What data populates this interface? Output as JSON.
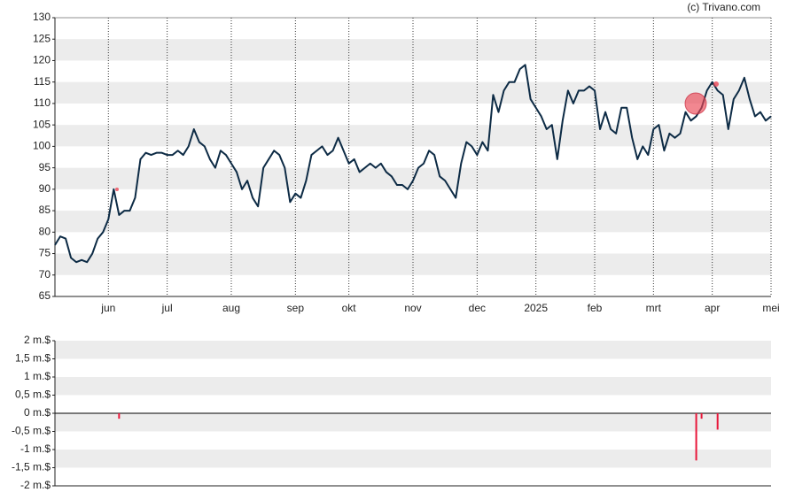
{
  "copyright": "(c) Trivano.com",
  "chart_data": [
    {
      "type": "line",
      "color": "#0d2b45",
      "grid": true,
      "bands": true,
      "categories": [
        null,
        null,
        null,
        null,
        null,
        null,
        null,
        null,
        null,
        null,
        "jun",
        null,
        null,
        null,
        null,
        null,
        null,
        null,
        null,
        null,
        null,
        "jul",
        null,
        null,
        null,
        null,
        null,
        null,
        null,
        null,
        null,
        null,
        null,
        "aug",
        null,
        null,
        null,
        null,
        null,
        null,
        null,
        null,
        null,
        null,
        null,
        "sep",
        null,
        null,
        null,
        null,
        null,
        null,
        null,
        null,
        null,
        "okt",
        null,
        null,
        null,
        null,
        null,
        null,
        null,
        null,
        null,
        null,
        null,
        "nov",
        null,
        null,
        null,
        null,
        null,
        null,
        null,
        null,
        null,
        null,
        null,
        "dec",
        null,
        null,
        null,
        null,
        null,
        null,
        null,
        null,
        null,
        null,
        "2025",
        null,
        null,
        null,
        null,
        null,
        null,
        null,
        null,
        null,
        null,
        "feb",
        null,
        null,
        null,
        null,
        null,
        null,
        null,
        null,
        null,
        null,
        "mrt",
        null,
        null,
        null,
        null,
        null,
        null,
        null,
        null,
        null,
        null,
        "apr",
        null,
        null,
        null,
        null,
        null,
        null,
        null,
        null,
        null,
        null,
        "mei"
      ],
      "values": [
        77,
        79,
        78.5,
        74,
        73,
        73.5,
        73,
        75,
        78.5,
        80,
        83,
        90,
        84,
        85,
        85,
        88,
        97,
        98.5,
        98,
        98.5,
        98.5,
        98,
        98,
        99,
        98,
        100,
        104,
        101,
        100,
        97,
        95,
        99,
        98,
        96,
        94,
        90,
        92,
        88,
        86,
        95,
        97,
        99,
        98,
        95,
        87,
        89,
        88,
        92,
        98,
        99,
        100,
        98,
        99,
        102,
        99,
        96,
        97,
        94,
        95,
        96,
        95,
        96,
        94,
        93,
        91,
        91,
        90,
        92,
        95,
        96,
        99,
        98,
        93,
        92,
        90,
        88,
        96,
        101,
        100,
        98,
        101,
        99,
        112,
        108,
        113,
        115,
        115,
        118,
        119,
        111,
        109,
        107,
        104,
        105,
        97,
        106,
        113,
        110,
        113,
        113,
        114,
        113,
        104,
        108,
        104,
        103,
        109,
        109,
        102,
        97,
        100,
        98,
        104,
        105,
        99,
        103,
        102,
        103,
        108,
        106,
        107,
        109,
        113,
        115,
        113,
        112,
        104,
        111,
        113,
        116,
        111,
        107,
        108,
        106,
        107
      ],
      "ylim": [
        65,
        130
      ],
      "yticks": [
        65,
        70,
        75,
        80,
        85,
        90,
        95,
        100,
        105,
        110,
        115,
        120,
        125,
        130
      ]
    },
    {
      "type": "bar",
      "color": "#e8173a",
      "grid": true,
      "bands": true,
      "values": [
        null,
        null,
        null,
        null,
        null,
        null,
        null,
        null,
        null,
        null,
        null,
        null,
        -0.15,
        null,
        null,
        null,
        null,
        null,
        null,
        null,
        null,
        null,
        null,
        null,
        null,
        null,
        null,
        null,
        null,
        null,
        null,
        null,
        null,
        null,
        null,
        null,
        null,
        null,
        null,
        null,
        null,
        null,
        null,
        null,
        null,
        null,
        null,
        null,
        null,
        null,
        null,
        null,
        null,
        null,
        null,
        null,
        null,
        null,
        null,
        null,
        null,
        null,
        null,
        null,
        null,
        null,
        null,
        null,
        null,
        null,
        null,
        null,
        null,
        null,
        null,
        null,
        null,
        null,
        null,
        null,
        null,
        null,
        null,
        null,
        null,
        null,
        null,
        null,
        null,
        null,
        null,
        null,
        null,
        null,
        null,
        null,
        null,
        null,
        null,
        null,
        null,
        null,
        null,
        null,
        null,
        null,
        null,
        null,
        null,
        null,
        null,
        null,
        null,
        null,
        null,
        null,
        null,
        null,
        null,
        null,
        -1.3,
        -0.15,
        null,
        null,
        -0.45,
        null,
        null,
        null,
        null,
        null,
        null,
        null,
        null,
        null,
        null
      ],
      "ylim": [
        -2,
        2
      ],
      "yticks": [
        {
          "value": -2,
          "label": "-2 m.$"
        },
        {
          "value": -1.5,
          "label": "-1,5 m.$"
        },
        {
          "value": -1,
          "label": "-1 m.$"
        },
        {
          "value": -0.5,
          "label": "-0,5 m.$"
        },
        {
          "value": 0,
          "label": "0 m.$"
        },
        {
          "value": 0.5,
          "label": "0,5 m.$"
        },
        {
          "value": 1,
          "label": "1 m.$"
        },
        {
          "value": 1.5,
          "label": "1,5 m.$"
        },
        {
          "value": 2,
          "label": "2 m.$"
        }
      ]
    }
  ]
}
